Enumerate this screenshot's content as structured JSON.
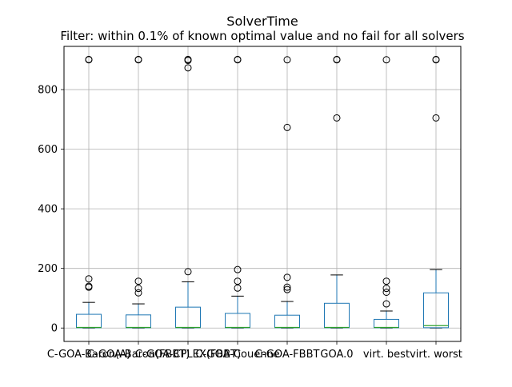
{
  "chart_data": {
    "type": "box",
    "title_line1": "SolverTime",
    "title_line2": "Filter: within 0.1% of known optimal value and no fail for all solvers",
    "xlabel": "",
    "ylabel": "",
    "ylim": [
      -45,
      945
    ],
    "yticks": [
      0,
      200,
      400,
      600,
      800
    ],
    "grid": true,
    "colors": {
      "box": "#1f77b4",
      "median": "#2ca02c",
      "whisker": "#000000",
      "grid": "#b0b0b0",
      "flier": "#000000"
    },
    "categories": [
      "C-GOA-Baron(A)",
      "C-GOA-Baron(FBBT)",
      "C-GOA-CPLEX(FBBT)",
      "C-GOA-Couenne",
      "C-GOA-FBBT",
      "GOA.0",
      "virt. best",
      "virt. worst"
    ],
    "boxes": [
      {
        "q1": 1,
        "median": 2,
        "q3": 46,
        "whisker_low": 0,
        "whisker_high": 86,
        "fliers": [
          137,
          140,
          165,
          900,
          901
        ]
      },
      {
        "q1": 1,
        "median": 2,
        "q3": 44,
        "whisker_low": 0,
        "whisker_high": 81,
        "fliers": [
          118,
          133,
          157,
          900,
          901
        ]
      },
      {
        "q1": 1,
        "median": 2,
        "q3": 70,
        "whisker_low": 0,
        "whisker_high": 155,
        "fliers": [
          189,
          873,
          898,
          900,
          901
        ]
      },
      {
        "q1": 1,
        "median": 2,
        "q3": 49,
        "whisker_low": 0,
        "whisker_high": 107,
        "fliers": [
          134,
          157,
          196,
          900,
          901
        ]
      },
      {
        "q1": 1,
        "median": 2,
        "q3": 43,
        "whisker_low": 0,
        "whisker_high": 89,
        "fliers": [
          129,
          137,
          170,
          673,
          900
        ]
      },
      {
        "q1": 1,
        "median": 2,
        "q3": 83,
        "whisker_low": 0,
        "whisker_high": 178,
        "fliers": [
          705,
          900,
          901
        ]
      },
      {
        "q1": 1,
        "median": 2,
        "q3": 29,
        "whisker_low": 0,
        "whisker_high": 57,
        "fliers": [
          81,
          120,
          133,
          157,
          900
        ]
      },
      {
        "q1": 1,
        "median": 8,
        "q3": 118,
        "whisker_low": 0,
        "whisker_high": 196,
        "fliers": [
          705,
          900,
          901
        ]
      }
    ]
  }
}
